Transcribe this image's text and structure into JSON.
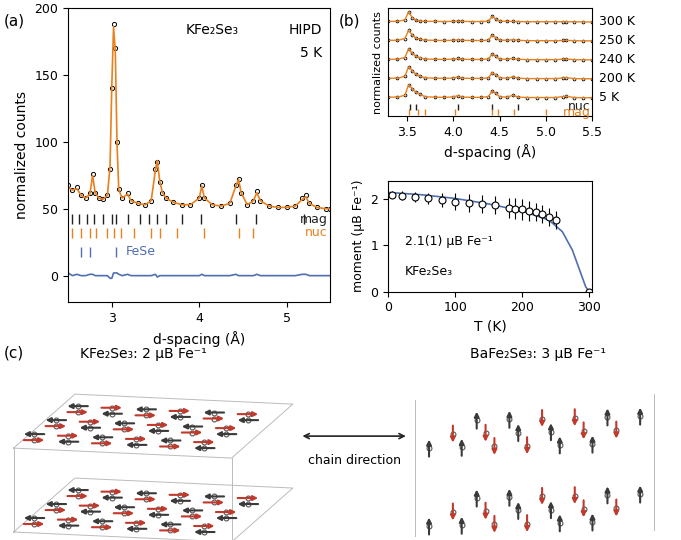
{
  "chart_data": [
    {
      "type": "line",
      "x_label": "d-spacing (Å)",
      "y_label": "normalized counts",
      "annotations": [
        "(a)",
        "KFe₂Se₃",
        "HIPD",
        "5 K"
      ],
      "x": [
        2.5,
        2.55,
        2.6,
        2.65,
        2.7,
        2.75,
        2.78,
        2.81,
        2.85,
        2.9,
        2.95,
        2.98,
        3.0,
        3.02,
        3.04,
        3.06,
        3.08,
        3.12,
        3.18,
        3.22,
        3.3,
        3.38,
        3.45,
        3.5,
        3.52,
        3.55,
        3.58,
        3.62,
        3.7,
        3.8,
        3.9,
        4.0,
        4.03,
        4.06,
        4.15,
        4.25,
        4.35,
        4.42,
        4.45,
        4.48,
        4.55,
        4.62,
        4.66,
        4.7,
        4.8,
        4.9,
        5.0,
        5.1,
        5.18,
        5.22,
        5.26,
        5.35,
        5.45,
        5.5
      ],
      "series": [
        {
          "type": "scatter",
          "color": "#000000",
          "marker": "o",
          "values": [
            68,
            64,
            66,
            60,
            58,
            62,
            76,
            62,
            58,
            57,
            60,
            80,
            140,
            188,
            170,
            100,
            65,
            58,
            62,
            56,
            54,
            53,
            56,
            80,
            85,
            70,
            62,
            58,
            55,
            53,
            53,
            58,
            68,
            58,
            53,
            52,
            54,
            68,
            72,
            62,
            53,
            56,
            63,
            56,
            52,
            51,
            51,
            52,
            58,
            60,
            54,
            51,
            50,
            50
          ]
        },
        {
          "type": "line",
          "color": "#e8801e",
          "line_style": "solid",
          "values": [
            66,
            64,
            65,
            60,
            58,
            61,
            75,
            62,
            58,
            57,
            60,
            82,
            142,
            186,
            168,
            98,
            64,
            58,
            61,
            56,
            54,
            53,
            56,
            79,
            86,
            70,
            62,
            58,
            55,
            53,
            53,
            58,
            67,
            58,
            53,
            52,
            54,
            67,
            72,
            62,
            53,
            56,
            62,
            56,
            52,
            51,
            51,
            52,
            57,
            59,
            54,
            51,
            50,
            50
          ]
        },
        {
          "type": "line",
          "color": "#4f6fb0",
          "line_style": "solid",
          "values": [
            2,
            0,
            1,
            0,
            0,
            1,
            1,
            0,
            0,
            0,
            0,
            -2,
            -2,
            2,
            2,
            2,
            1,
            0,
            1,
            0,
            0,
            0,
            0,
            1,
            -1,
            0,
            0,
            0,
            0,
            0,
            0,
            0,
            1,
            0,
            0,
            0,
            0,
            1,
            0,
            0,
            0,
            0,
            1,
            0,
            0,
            0,
            0,
            0,
            1,
            1,
            0,
            0,
            0,
            0
          ]
        }
      ],
      "reflections": [
        {
          "label": "mag",
          "color": "#222222",
          "y": 42,
          "positions": [
            2.55,
            2.62,
            2.72,
            2.8,
            2.9,
            3.0,
            3.05,
            3.18,
            3.32,
            3.42,
            3.52,
            3.62,
            3.8,
            4.02,
            4.42,
            4.65,
            5.2
          ]
        },
        {
          "label": "nuc",
          "color": "#e8801e",
          "y": 32,
          "positions": [
            2.55,
            2.65,
            2.75,
            2.82,
            2.95,
            3.02,
            3.1,
            3.25,
            3.45,
            3.55,
            3.75,
            4.05,
            4.45,
            4.62
          ]
        },
        {
          "label": "FeSe",
          "color": "#4f6fb0",
          "y": 18,
          "positions": [
            2.65,
            2.75,
            3.05
          ]
        }
      ],
      "xlim": [
        2.5,
        5.5
      ],
      "xticks": [
        3,
        4,
        5
      ],
      "ylim": [
        -20,
        200
      ],
      "yticks": [
        0,
        50,
        100,
        150,
        200
      ]
    },
    {
      "type": "line",
      "x_label": "d-spacing (Å)",
      "y_label": "normalized counts",
      "annotations": [
        "(b)"
      ],
      "tick_labels": "x",
      "color": "#e8801e",
      "marker": "o",
      "x": [
        3.3,
        3.4,
        3.48,
        3.52,
        3.56,
        3.6,
        3.64,
        3.7,
        3.8,
        3.9,
        4.0,
        4.05,
        4.1,
        4.2,
        4.3,
        4.38,
        4.42,
        4.46,
        4.5,
        4.58,
        4.64,
        4.7,
        4.8,
        4.9,
        5.0,
        5.1,
        5.18,
        5.22,
        5.3,
        5.4,
        5.5
      ],
      "series": [
        {
          "name": "300 K",
          "values": [
            0.3,
            0.3,
            0.38,
            0.8,
            0.5,
            0.36,
            0.32,
            0.3,
            0.3,
            0.29,
            0.3,
            0.31,
            0.3,
            0.29,
            0.29,
            0.31,
            0.56,
            0.42,
            0.31,
            0.3,
            0.3,
            0.29,
            0.28,
            0.28,
            0.28,
            0.28,
            0.28,
            0.28,
            0.28,
            0.27,
            0.27
          ]
        },
        {
          "name": "250 K",
          "values": [
            0.3,
            0.3,
            0.39,
            0.83,
            0.58,
            0.42,
            0.36,
            0.31,
            0.3,
            0.29,
            0.3,
            0.33,
            0.3,
            0.29,
            0.29,
            0.31,
            0.57,
            0.44,
            0.31,
            0.3,
            0.33,
            0.3,
            0.28,
            0.28,
            0.28,
            0.28,
            0.29,
            0.3,
            0.28,
            0.27,
            0.27
          ]
        },
        {
          "name": "240 K",
          "values": [
            0.3,
            0.3,
            0.39,
            0.85,
            0.62,
            0.45,
            0.38,
            0.31,
            0.3,
            0.29,
            0.31,
            0.34,
            0.3,
            0.29,
            0.29,
            0.31,
            0.58,
            0.45,
            0.31,
            0.3,
            0.34,
            0.3,
            0.28,
            0.28,
            0.28,
            0.28,
            0.3,
            0.31,
            0.28,
            0.27,
            0.27
          ]
        },
        {
          "name": "200 K",
          "values": [
            0.3,
            0.3,
            0.4,
            0.9,
            0.7,
            0.5,
            0.42,
            0.32,
            0.3,
            0.29,
            0.31,
            0.36,
            0.3,
            0.29,
            0.29,
            0.32,
            0.6,
            0.48,
            0.32,
            0.3,
            0.37,
            0.3,
            0.28,
            0.28,
            0.28,
            0.28,
            0.31,
            0.33,
            0.28,
            0.27,
            0.27
          ]
        },
        {
          "name": "5 K",
          "values": [
            0.3,
            0.3,
            0.4,
            0.95,
            0.75,
            0.55,
            0.45,
            0.32,
            0.3,
            0.29,
            0.31,
            0.38,
            0.3,
            0.29,
            0.29,
            0.33,
            0.62,
            0.5,
            0.32,
            0.3,
            0.4,
            0.3,
            0.28,
            0.28,
            0.28,
            0.28,
            0.33,
            0.35,
            0.28,
            0.27,
            0.27
          ]
        }
      ],
      "reflections": [
        {
          "label": "nuc",
          "color": "#222222",
          "y": -0.2,
          "positions": [
            3.53,
            3.6,
            4.05,
            4.42,
            4.7
          ]
        },
        {
          "label": "mag",
          "color": "#e8801e",
          "y": -0.5,
          "positions": [
            3.52,
            3.62,
            3.7,
            4.02,
            4.42,
            4.48,
            4.65,
            5.0
          ]
        }
      ],
      "xlim": [
        3.3,
        5.5
      ],
      "xticks": [
        3.5,
        4.0,
        4.5,
        5.0,
        5.5
      ],
      "ylim": [
        -0.7,
        5.0
      ]
    },
    {
      "type": "scatter",
      "x_label": "T (K)",
      "y_label": "moment (μB Fe⁻¹)",
      "annotations": [
        "2.1(1) μB Fe⁻¹",
        "KFe₂Se₃"
      ],
      "marker": "o",
      "color": "#000000",
      "x": [
        5,
        20,
        40,
        60,
        80,
        100,
        120,
        140,
        160,
        180,
        190,
        200,
        210,
        220,
        230,
        240,
        250,
        300
      ],
      "values": [
        2.1,
        2.08,
        2.05,
        2.02,
        1.98,
        1.95,
        1.92,
        1.9,
        1.88,
        1.82,
        1.8,
        1.78,
        1.75,
        1.72,
        1.68,
        1.62,
        1.55,
        0
      ],
      "errors": [
        0.08,
        0.1,
        0.1,
        0.12,
        0.15,
        0.18,
        0.2,
        0.2,
        0.2,
        0.22,
        0.22,
        0.22,
        0.22,
        0.2,
        0.2,
        0.2,
        0.2,
        0.02
      ],
      "fit": {
        "color": "#4f6fb0",
        "line_style": "solid",
        "x": [
          0,
          50,
          100,
          150,
          200,
          240,
          260,
          275,
          285,
          295,
          300
        ],
        "values": [
          2.15,
          2.1,
          2.02,
          1.9,
          1.75,
          1.55,
          1.3,
          0.9,
          0.5,
          0.1,
          0
        ]
      },
      "xlim": [
        0,
        305
      ],
      "xticks": [
        0,
        100,
        200,
        300
      ],
      "ylim": [
        0,
        2.4
      ],
      "yticks": [
        0,
        1,
        2
      ]
    }
  ],
  "diagram": {
    "panel": "(c)",
    "left_title": "KFe₂Se₃: 2 μB Fe⁻¹",
    "right_title": "BaFe₂Se₃: 3 μB Fe⁻¹",
    "arrow_label": "chain direction"
  }
}
